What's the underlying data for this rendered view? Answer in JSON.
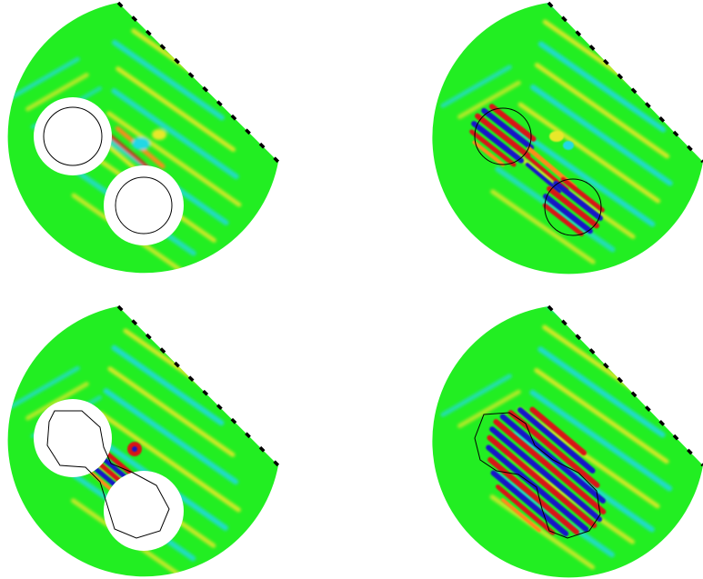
{
  "figure": {
    "panels": [
      {
        "name": "panel-top-left",
        "obstacle": "two-separate-disks-white",
        "field": "weak"
      },
      {
        "name": "panel-top-right",
        "obstacle": "two-separate-disks-field",
        "field": "strong"
      },
      {
        "name": "panel-bottom-left",
        "obstacle": "two-disks-bridged-white",
        "field": "medium"
      },
      {
        "name": "panel-bottom-right",
        "obstacle": "two-disks-bridged-field",
        "field": "strong"
      }
    ],
    "colors": {
      "background": "#22ee22",
      "cyan": "#22d8e6",
      "yellow": "#e8e82a",
      "orange": "#ff8a1a",
      "red": "#d81212",
      "blue": "#1616c8",
      "obstacle_fill": "#ffffff",
      "outline": "#000000",
      "sensor_marks": "#000000"
    }
  }
}
